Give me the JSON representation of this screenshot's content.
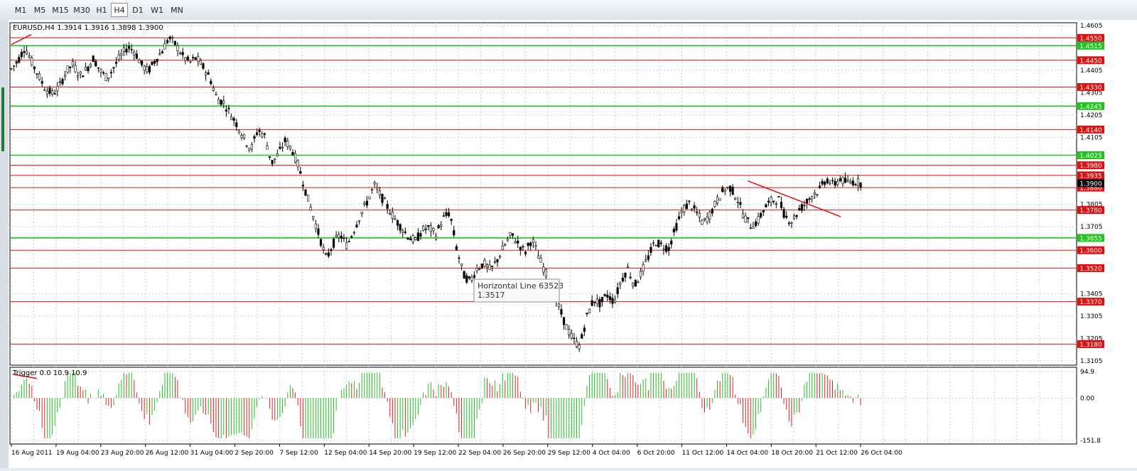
{
  "toolbar": {
    "timeframes": [
      {
        "label": "M1",
        "active": false
      },
      {
        "label": "M5",
        "active": false
      },
      {
        "label": "M15",
        "active": false
      },
      {
        "label": "M30",
        "active": false
      },
      {
        "label": "H1",
        "active": false
      },
      {
        "label": "H4",
        "active": true
      },
      {
        "label": "D1",
        "active": false
      },
      {
        "label": "W1",
        "active": false
      },
      {
        "label": "MN",
        "active": false
      }
    ]
  },
  "chart": {
    "header": "EURUSD,H4  1.3914 1.3916 1.3898 1.3900",
    "symbol": "EURUSD",
    "timeframe": "H4",
    "ohlc": [
      1.3914,
      1.3916,
      1.3898,
      1.39
    ],
    "price_range": [
      1.3105,
      1.4605
    ],
    "price_ticks": [
      {
        "value": 1.4605,
        "label": "1.4605"
      },
      {
        "value": 1.4405,
        "label": "1.4405"
      },
      {
        "value": 1.4305,
        "label": "1.4305"
      },
      {
        "value": 1.4205,
        "label": "1.4205"
      },
      {
        "value": 1.4105,
        "label": "1.4105"
      },
      {
        "value": 1.3805,
        "label": "1.3805"
      },
      {
        "value": 1.3705,
        "label": "1.3705"
      },
      {
        "value": 1.3405,
        "label": "1.3405"
      },
      {
        "value": 1.3305,
        "label": "1.3305"
      },
      {
        "value": 1.3205,
        "label": "1.3205"
      },
      {
        "value": 1.3105,
        "label": "1.3105"
      }
    ],
    "current_price": {
      "value": 1.39,
      "label": "1.3900"
    },
    "horizontal_lines": [
      {
        "value": 1.455,
        "label": "1.4550",
        "color": "#e01010"
      },
      {
        "value": 1.4515,
        "label": "1.4515",
        "color": "#1fc41f"
      },
      {
        "value": 1.445,
        "label": "1.4450",
        "color": "#e01010"
      },
      {
        "value": 1.433,
        "label": "1.4330",
        "color": "#e01010"
      },
      {
        "value": 1.4245,
        "label": "1.4245",
        "color": "#1fc41f"
      },
      {
        "value": 1.414,
        "label": "1.4140",
        "color": "#e01010"
      },
      {
        "value": 1.4025,
        "label": "1.4025",
        "color": "#1fc41f"
      },
      {
        "value": 1.398,
        "label": "1.3980",
        "color": "#e01010"
      },
      {
        "value": 1.3935,
        "label": "1.3935",
        "color": "#e01010"
      },
      {
        "value": 1.388,
        "label": "1.3880",
        "color": "#e01010"
      },
      {
        "value": 1.378,
        "label": "1.3780",
        "color": "#e01010"
      },
      {
        "value": 1.3655,
        "label": "1.3655",
        "color": "#1fc41f"
      },
      {
        "value": 1.36,
        "label": "1.3600",
        "color": "#e01010"
      },
      {
        "value": 1.352,
        "label": "1.3520",
        "color": "#e01010"
      },
      {
        "value": 1.337,
        "label": "1.3370",
        "color": "#e01010"
      },
      {
        "value": 1.318,
        "label": "1.3180",
        "color": "#e01010"
      }
    ],
    "tooltip": {
      "title": "Horizontal Line 63523",
      "value": "1.3517"
    },
    "date_labels": [
      "16 Aug 2011",
      "19 Aug 04:00",
      "23 Aug 20:00",
      "26 Aug 12:00",
      "31 Aug 04:00",
      "2 Sep 20:00",
      "7 Sep 12:00",
      "12 Sep 04:00",
      "14 Sep 20:00",
      "19 Sep 12:00",
      "22 Sep 04:00",
      "26 Sep 20:00",
      "29 Sep 12:00",
      "4 Oct 04:00",
      "6 Oct 20:00",
      "11 Oct 12:00",
      "14 Oct 04:00",
      "18 Oct 20:00",
      "21 Oct 12:00",
      "26 Oct 04:00"
    ],
    "close_path": [
      1.441,
      1.445,
      1.451,
      1.444,
      1.438,
      1.432,
      1.43,
      1.433,
      1.44,
      1.443,
      1.438,
      1.441,
      1.446,
      1.44,
      1.437,
      1.442,
      1.447,
      1.451,
      1.449,
      1.443,
      1.44,
      1.445,
      1.449,
      1.455,
      1.452,
      1.447,
      1.444,
      1.446,
      1.442,
      1.437,
      1.428,
      1.426,
      1.421,
      1.416,
      1.41,
      1.405,
      1.414,
      1.411,
      1.399,
      1.403,
      1.409,
      1.405,
      1.397,
      1.386,
      1.376,
      1.366,
      1.356,
      1.363,
      1.367,
      1.362,
      1.369,
      1.376,
      1.382,
      1.389,
      1.384,
      1.379,
      1.374,
      1.37,
      1.366,
      1.364,
      1.369,
      1.37,
      1.367,
      1.374,
      1.377,
      1.361,
      1.349,
      1.346,
      1.352,
      1.354,
      1.351,
      1.356,
      1.362,
      1.367,
      1.363,
      1.359,
      1.365,
      1.357,
      1.35,
      1.342,
      1.334,
      1.326,
      1.32,
      1.317,
      1.33,
      1.338,
      1.336,
      1.34,
      1.337,
      1.346,
      1.352,
      1.344,
      1.35,
      1.357,
      1.364,
      1.362,
      1.361,
      1.37,
      1.378,
      1.381,
      1.377,
      1.372,
      1.376,
      1.382,
      1.387,
      1.388,
      1.383,
      1.375,
      1.371,
      1.373,
      1.379,
      1.382,
      1.383,
      1.375,
      1.373,
      1.378,
      1.381,
      1.385,
      1.387,
      1.392,
      1.389,
      1.392,
      1.39,
      1.391,
      1.39
    ],
    "trendlines": [
      {
        "from": [
          "16 Aug 2011",
          1.452
        ],
        "to": [
          "16 Aug 2011",
          1.4565
        ],
        "color": "#e01010"
      },
      {
        "from": [
          "14 Oct 04:00",
          1.391
        ],
        "to": [
          "21 Oct 12:00",
          1.375
        ],
        "color": "#e01010"
      }
    ],
    "colors": {
      "bull_line": "#000000",
      "bull_body": "#ffffff",
      "bear_body": "#000000",
      "hist_up": "#22c022",
      "hist_down": "#e02020",
      "grid": "#c8ccd2"
    }
  },
  "indicator": {
    "header": "Trigger 0.0 10.9 10.9",
    "name": "Trigger",
    "values_shown": [
      0.0,
      10.9,
      10.9
    ],
    "range": [
      -151.8,
      94.9
    ],
    "ticks": [
      {
        "value": 94.9,
        "label": "94.9"
      },
      {
        "value": 0,
        "label": "0.00"
      },
      {
        "value": -151.8,
        "label": "-151.8"
      }
    ]
  }
}
